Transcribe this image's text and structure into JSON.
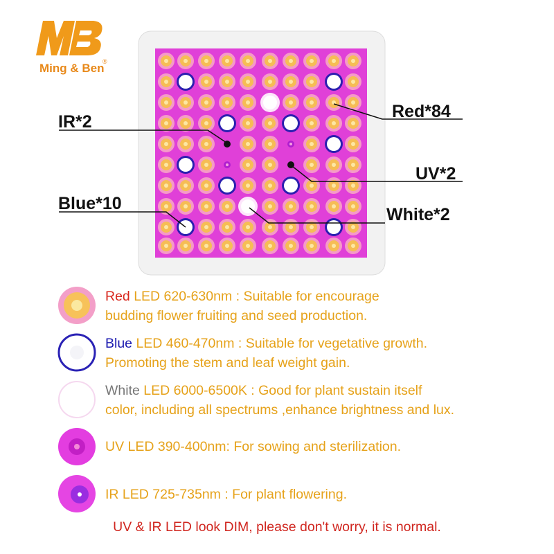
{
  "brand": {
    "name": "Ming & Ben",
    "mark": "®"
  },
  "callouts": [
    {
      "label": "IR*2"
    },
    {
      "label": "Red*84"
    },
    {
      "label": "UV*2"
    },
    {
      "label": "Blue*10"
    },
    {
      "label": "White*2"
    }
  ],
  "legend": [
    {
      "name": "Red",
      "line1": " LED 620-630nm : Suitable for encourage",
      "line2": "budding flower fruiting and seed production."
    },
    {
      "name": "Blue",
      "line1": " LED 460-470nm : Suitable for vegetative growth.",
      "line2": "Promoting the stem and leaf weight gain."
    },
    {
      "name": "White",
      "line1": " LED 6000-6500K : Good for plant sustain itself",
      "line2": "color, including all spectrums ,enhance brightness and lux."
    },
    {
      "name": "UV",
      "line1": " LED 390-400nm: For sowing and sterilization."
    },
    {
      "name": "IR",
      "line1": " LED 725-735nm : For plant flowering."
    }
  ],
  "footer": "UV & IR LED look DIM, please don't worry, it is normal."
}
